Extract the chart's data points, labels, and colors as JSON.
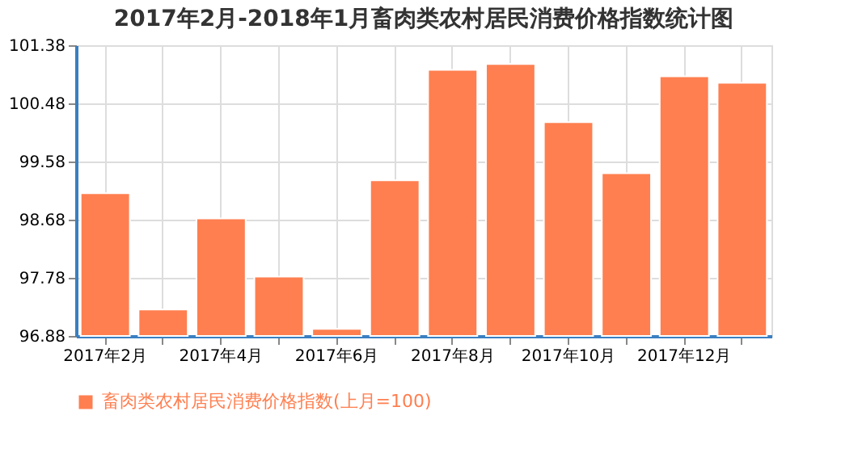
{
  "chart_data": {
    "type": "bar",
    "title": "2017年2月-2018年1月畜肉类农村居民消费价格指数统计图",
    "categories": [
      "2017年2月",
      null,
      "2017年4月",
      null,
      "2017年6月",
      null,
      "2017年8月",
      null,
      "2017年10月",
      null,
      "2017年12月",
      null
    ],
    "series": [
      {
        "name": "畜肉类农村居民消费价格指数(上月=100)",
        "color": "#ff7f50",
        "values": [
          99.09,
          97.29,
          98.7,
          97.8,
          96.99,
          99.29,
          101.0,
          101.09,
          100.19,
          99.4,
          100.9,
          100.8
        ]
      }
    ],
    "ylim": [
      96.88,
      101.38
    ],
    "yticks": [
      96.88,
      97.78,
      98.68,
      99.58,
      100.48,
      101.38
    ],
    "grid": true,
    "legend": "bottom"
  }
}
